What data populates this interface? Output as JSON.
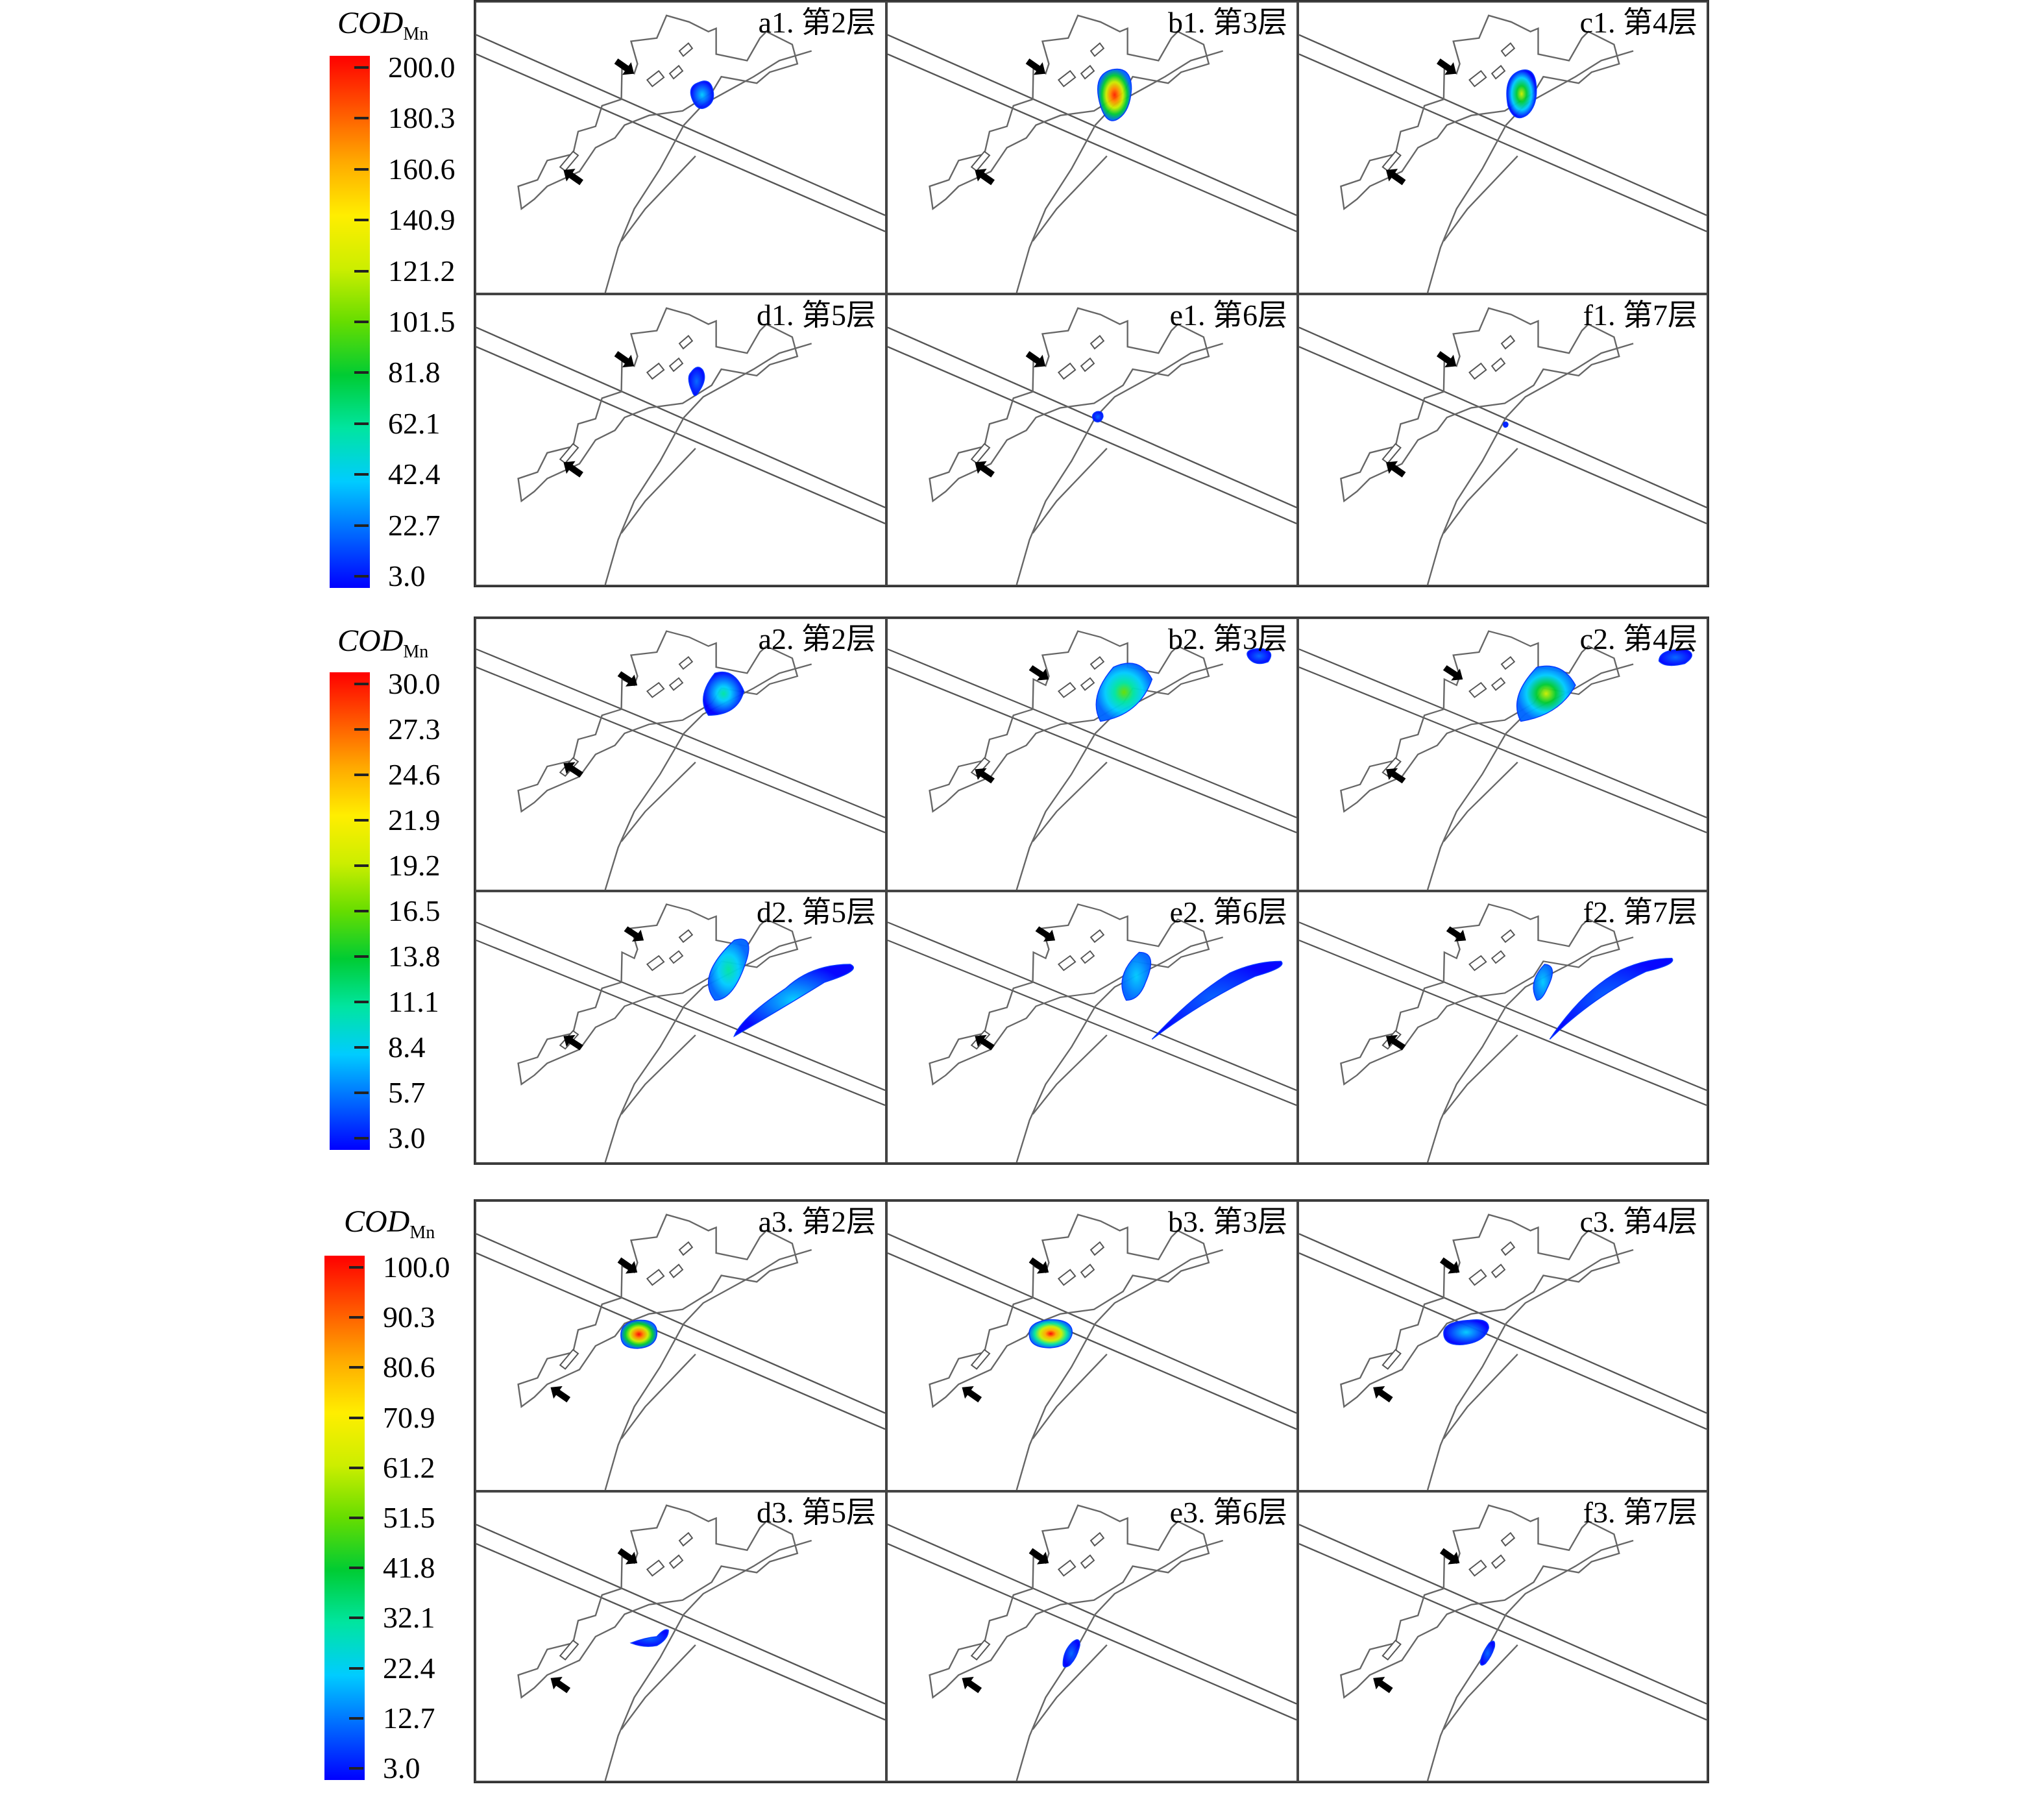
{
  "groups": [
    {
      "legend": {
        "title_main": "COD",
        "title_sub": "Mn",
        "ticks": [
          "200.0",
          "180.3",
          "160.6",
          "140.9",
          "121.2",
          "101.5",
          "81.8",
          "62.1",
          "42.4",
          "22.7",
          "3.0"
        ],
        "range": [
          3.0,
          200.0
        ]
      },
      "panels": [
        {
          "label": "a1. 第2层"
        },
        {
          "label": "b1. 第3层"
        },
        {
          "label": "c1. 第4层"
        },
        {
          "label": "d1. 第5层"
        },
        {
          "label": "e1. 第6层"
        },
        {
          "label": "f1. 第7层"
        }
      ]
    },
    {
      "legend": {
        "title_main": "COD",
        "title_sub": "Mn",
        "ticks": [
          "30.0",
          "27.3",
          "24.6",
          "21.9",
          "19.2",
          "16.5",
          "13.8",
          "11.1",
          "8.4",
          "5.7",
          "3.0"
        ],
        "range": [
          3.0,
          30.0
        ]
      },
      "panels": [
        {
          "label": "a2. 第2层"
        },
        {
          "label": "b2. 第3层"
        },
        {
          "label": "c2. 第4层"
        },
        {
          "label": "d2. 第5层"
        },
        {
          "label": "e2. 第6层"
        },
        {
          "label": "f2. 第7层"
        }
      ]
    },
    {
      "legend": {
        "title_main": "COD",
        "title_sub": "Mn",
        "ticks": [
          "100.0",
          "90.3",
          "80.6",
          "70.9",
          "61.2",
          "51.5",
          "41.8",
          "32.1",
          "22.4",
          "12.7",
          "3.0"
        ],
        "range": [
          3.0,
          100.0
        ]
      },
      "panels": [
        {
          "label": "a3. 第2层"
        },
        {
          "label": "b3. 第3层"
        },
        {
          "label": "c3. 第4层"
        },
        {
          "label": "d3. 第5层"
        },
        {
          "label": "e3. 第6层"
        },
        {
          "label": "f3. 第7层"
        }
      ]
    }
  ],
  "colormap": [
    "#0000ff",
    "#0066ff",
    "#00ccff",
    "#00e5a0",
    "#00cc33",
    "#66dd00",
    "#ccee00",
    "#ffee00",
    "#ffaa00",
    "#ff5500",
    "#ff0000"
  ]
}
